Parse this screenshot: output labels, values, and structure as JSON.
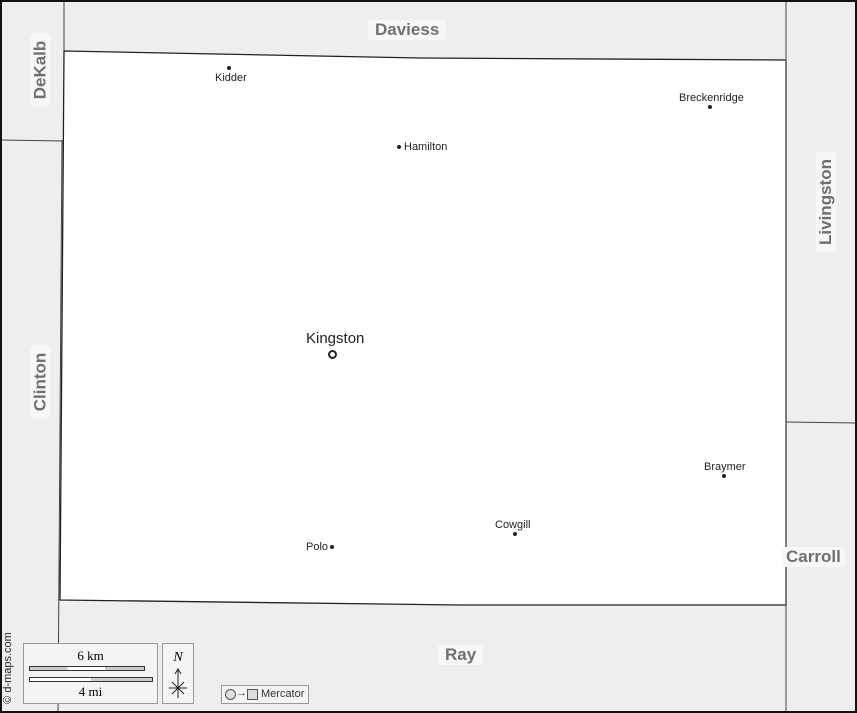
{
  "map": {
    "colors": {
      "county": "#ffffff",
      "neighbors": "#eeeeee",
      "border": "#222222",
      "label": "#707070"
    },
    "neighbors": {
      "north": "Daviess",
      "northwest": "DeKalb",
      "west": "Clinton",
      "east": "Livingston",
      "southeast": "Carroll",
      "south": "Ray"
    },
    "seat": "Kingston",
    "cities": [
      "Kidder",
      "Hamilton",
      "Breckenridge",
      "Braymer",
      "Cowgill",
      "Polo"
    ],
    "credit": "© d-maps.com",
    "scale": {
      "km": "6 km",
      "mi": "4 mi"
    },
    "north": "N",
    "projection": "Mercator"
  }
}
